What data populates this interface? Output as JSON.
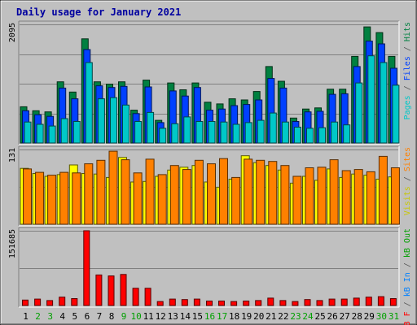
{
  "chart_data": {
    "type": "bar",
    "title": "Daily usage for January 2021",
    "categories": [
      "1",
      "2",
      "3",
      "4",
      "5",
      "6",
      "7",
      "8",
      "9",
      "10",
      "11",
      "12",
      "13",
      "14",
      "15",
      "16",
      "17",
      "18",
      "19",
      "20",
      "21",
      "22",
      "23",
      "24",
      "25",
      "26",
      "27",
      "28",
      "29",
      "30",
      "31"
    ],
    "weekend_days": [
      "2",
      "3",
      "9",
      "10",
      "16",
      "17",
      "23",
      "24",
      "30",
      "31"
    ],
    "grid": true,
    "panels": [
      {
        "id": "hits",
        "ymax_label": "2095",
        "ylim": [
          0,
          2095
        ],
        "legend": [
          {
            "text": "Pages",
            "color": "#00c8c8"
          },
          {
            "text": " / ",
            "color": "#555555"
          },
          {
            "text": "Files",
            "color": "#0040ff"
          },
          {
            "text": " / ",
            "color": "#555555"
          },
          {
            "text": "Hits",
            "color": "#008040"
          }
        ],
        "series": [
          {
            "name": "Hits",
            "color": "#008040",
            "values": [
              640,
              570,
              550,
              1080,
              900,
              1840,
              1080,
              1040,
              1080,
              580,
              1110,
              400,
              1060,
              940,
              1060,
              720,
              690,
              780,
              760,
              910,
              1350,
              1090,
              440,
              600,
              620,
              950,
              950,
              1530,
              2050,
              1950,
              1530
            ]
          },
          {
            "name": "Files",
            "color": "#0040ff",
            "values": [
              570,
              500,
              470,
              970,
              780,
              1650,
              1010,
              980,
              1000,
              520,
              990,
              360,
              920,
              830,
              980,
              580,
              600,
              660,
              680,
              760,
              1140,
              970,
              380,
              550,
              560,
              860,
              870,
              1350,
              1800,
              1750,
              1320
            ]
          },
          {
            "name": "Pages",
            "color": "#00c8c8",
            "values": [
              370,
              330,
              300,
              430,
              380,
              1420,
              780,
              800,
              670,
              380,
              540,
              260,
              340,
              460,
              380,
              380,
              370,
              330,
              360,
              400,
              530,
              370,
              280,
              260,
              270,
              370,
              320,
              1060,
              1540,
              1420,
              1020
            ]
          }
        ]
      },
      {
        "id": "visits",
        "ymax_label": "131",
        "ylim": [
          0,
          131
        ],
        "legend": [
          {
            "text": "Visits",
            "color": "#c8c800"
          },
          {
            "text": " / ",
            "color": "#555555"
          },
          {
            "text": "Sites",
            "color": "#ff8000"
          }
        ],
        "series": [
          {
            "name": "Visits",
            "color": "#ffff00",
            "values": [
              98,
              89,
              84,
              87,
              104,
              89,
              88,
              82,
              117,
              74,
              75,
              84,
              95,
              100,
              103,
              74,
              65,
              79,
              120,
              108,
              103,
              95,
              72,
              84,
              77,
              97,
              82,
              88,
              86,
              79,
              83
            ]
          },
          {
            "name": "Sites",
            "color": "#ff8000",
            "values": [
              97,
              91,
              86,
              91,
              90,
              106,
              112,
              128,
              113,
              90,
              114,
              87,
              103,
              96,
              112,
              106,
              115,
              82,
              114,
              112,
              110,
              103,
              84,
              99,
              100,
              113,
              94,
              96,
              92,
              119,
              99
            ]
          }
        ]
      },
      {
        "id": "kbytes",
        "ymax_label": "151685",
        "ylim": [
          0,
          151685
        ],
        "legend": [
          {
            "text": "kB F",
            "color": "#ff0000"
          },
          {
            "text": " / ",
            "color": "#555555"
          },
          {
            "text": "kB In",
            "color": "#0080ff"
          },
          {
            "text": " / ",
            "color": "#555555"
          },
          {
            "text": "kB Out",
            "color": "#00a000"
          }
        ],
        "series": [
          {
            "name": "kB F",
            "color": "#ff0000",
            "values": [
              11000,
              13000,
              10000,
              17000,
              14000,
              151685,
              62000,
              60000,
              63000,
              35000,
              35000,
              8000,
              13000,
              12000,
              13000,
              9000,
              9000,
              8000,
              9000,
              10000,
              15000,
              10000,
              8000,
              12000,
              10000,
              13000,
              13000,
              15000,
              17000,
              18000,
              14000
            ]
          }
        ]
      }
    ]
  }
}
